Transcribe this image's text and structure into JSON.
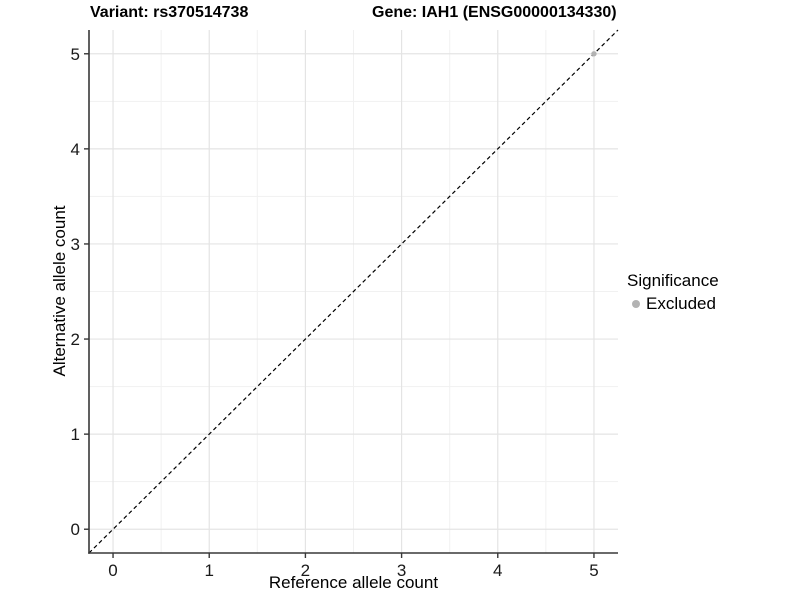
{
  "figure": {
    "title_left": "Variant: rs370514738",
    "title_right": "Gene: IAH1 (ENSG00000134330)"
  },
  "chart_data": {
    "type": "scatter",
    "titles": [
      "Variant: rs370514738",
      "Gene: IAH1 (ENSG00000134330)"
    ],
    "xlabel": "Reference allele count",
    "ylabel": "Alternative allele count",
    "xlim": [
      -0.25,
      5.25
    ],
    "ylim": [
      -0.25,
      5.25
    ],
    "xticks": [
      0,
      1,
      2,
      3,
      4,
      5
    ],
    "yticks": [
      0,
      1,
      2,
      3,
      4,
      5
    ],
    "grid": "major-and-minor",
    "reference_line": {
      "equation": "y = x",
      "style": "dashed",
      "color": "#000000"
    },
    "series": [
      {
        "name": "Excluded",
        "color": "#b3b3b3",
        "points": [
          {
            "x": 5,
            "y": 5
          }
        ]
      }
    ],
    "legend": {
      "title": "Significance",
      "position": "right",
      "items": [
        {
          "label": "Excluded",
          "color": "#b3b3b3"
        }
      ]
    }
  },
  "style": {
    "axis_line_color": "#383838",
    "tick_color": "#383838",
    "tick_label_color": "#1a1a1a",
    "major_grid_color": "#e4e4e4",
    "minor_grid_color": "#f1f1f1"
  }
}
